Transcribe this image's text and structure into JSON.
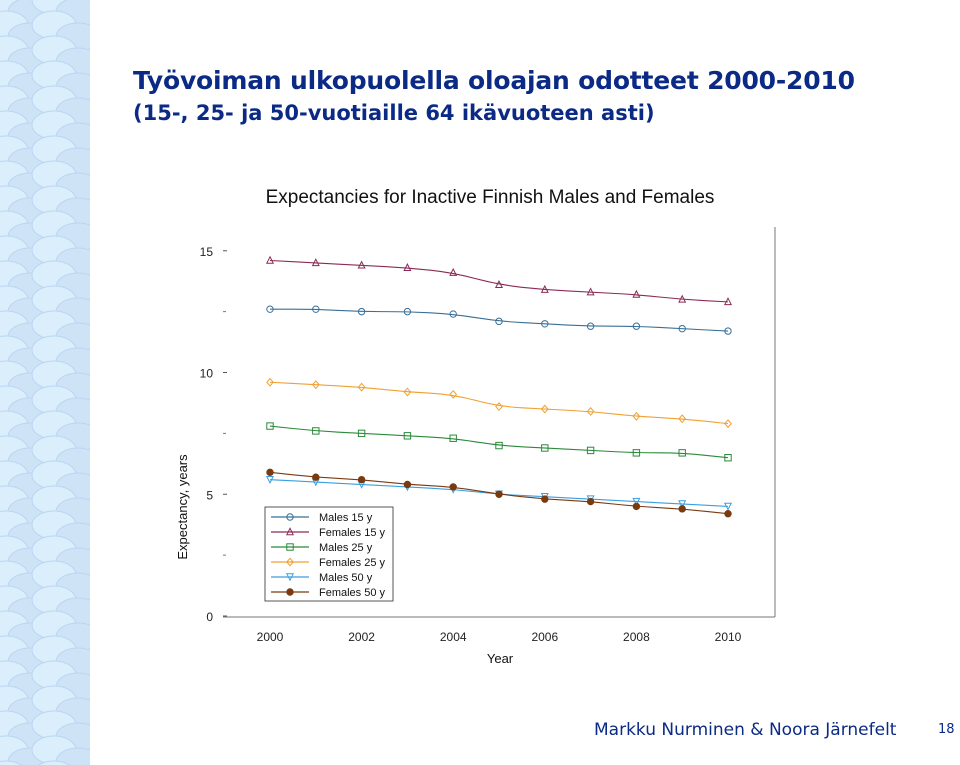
{
  "slide": {
    "title": "Työvoiman ulkopuolella oloajan odotteet 2000-2010",
    "subtitle": "(15-, 25- ja 50-vuotiaille 64 ikävuoteen asti)",
    "author": "Markku Nurminen & Noora Järnefelt",
    "page_number": "18"
  },
  "chart_data": {
    "type": "line",
    "title": "Expectancies for Inactive Finnish Males and Females",
    "xlabel": "Year",
    "ylabel": "Expectancy, years",
    "xlim": [
      2000,
      2010
    ],
    "ylim": [
      0,
      15
    ],
    "x_ticks": [
      "2000",
      "2002",
      "2004",
      "2006",
      "2008",
      "2010"
    ],
    "y_ticks": [
      "0",
      "5",
      "10",
      "15"
    ],
    "legend_position": "bottom-left",
    "x": [
      2000,
      2001,
      2002,
      2003,
      2004,
      2005,
      2006,
      2007,
      2008,
      2009,
      2010
    ],
    "series": [
      {
        "name": "Males 15 y",
        "color": "#3a6f96",
        "marker": "circle",
        "values": [
          12.6,
          12.6,
          12.5,
          12.5,
          12.4,
          12.1,
          12.0,
          11.9,
          11.9,
          11.8,
          11.7
        ],
        "trend": [
          12.6,
          12.45
        ]
      },
      {
        "name": "Females 15 y",
        "color": "#8a2a55",
        "marker": "triangle",
        "values": [
          14.6,
          14.5,
          14.4,
          14.3,
          14.1,
          13.6,
          13.4,
          13.3,
          13.2,
          13.0,
          12.9
        ]
      },
      {
        "name": "Males 25 y",
        "color": "#2a8a3a",
        "marker": "square",
        "values": [
          7.8,
          7.6,
          7.5,
          7.4,
          7.3,
          7.0,
          6.9,
          6.8,
          6.7,
          6.7,
          6.5
        ]
      },
      {
        "name": "Females 25 y",
        "color": "#f0a030",
        "marker": "diamond",
        "values": [
          9.6,
          9.5,
          9.4,
          9.2,
          9.1,
          8.6,
          8.5,
          8.4,
          8.2,
          8.1,
          7.9
        ]
      },
      {
        "name": "Males 50 y",
        "color": "#3a9ee0",
        "marker": "tri-down",
        "values": [
          5.6,
          5.5,
          5.4,
          5.3,
          5.2,
          5.0,
          4.9,
          4.8,
          4.7,
          4.6,
          4.5
        ]
      },
      {
        "name": "Females 50 y",
        "color": "#7a3a10",
        "marker": "filled-circle",
        "values": [
          5.9,
          5.7,
          5.6,
          5.4,
          5.3,
          5.0,
          4.8,
          4.7,
          4.5,
          4.4,
          4.2
        ]
      }
    ]
  }
}
